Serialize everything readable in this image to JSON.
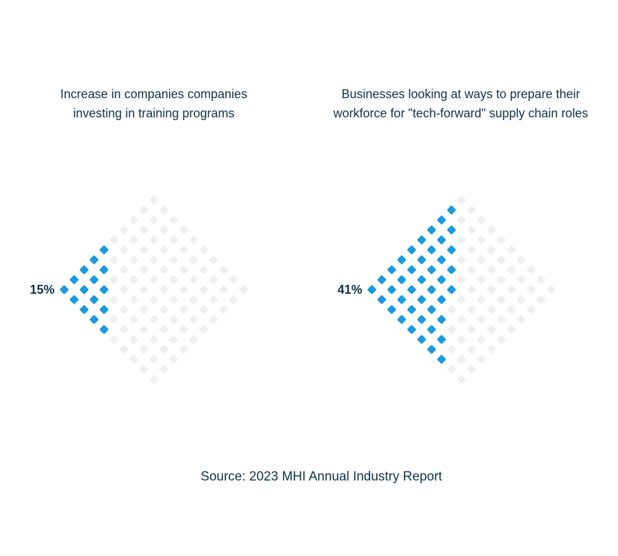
{
  "chart_data": [
    {
      "type": "waffle",
      "title": "Increase in companies companies investing in training programs",
      "value": 15,
      "value_label": "15%",
      "color": "#1a9be0",
      "empty_color": "#f0f0f0"
    },
    {
      "type": "waffle",
      "title": "Businesses looking at ways to prepare their workforce for \"tech-forward\" supply chain roles",
      "value": 41,
      "value_label": "41%",
      "color": "#1a9be0",
      "empty_color": "#f0f0f0"
    }
  ],
  "source": "Source: 2023 MHI Annual Industry Report"
}
